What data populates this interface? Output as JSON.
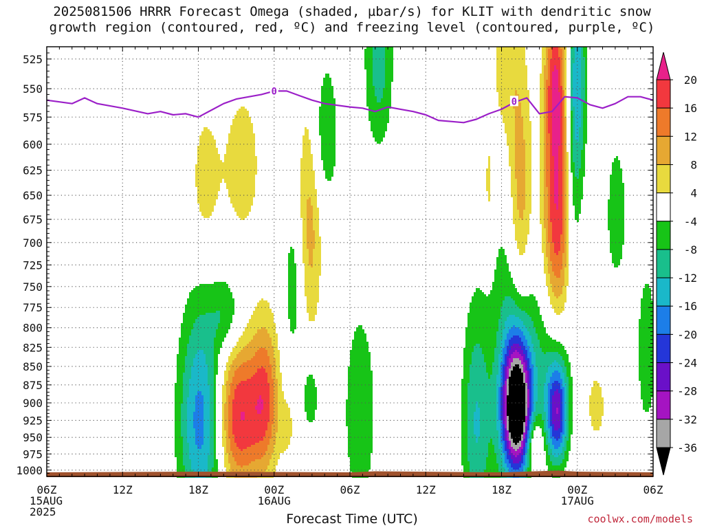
{
  "title": {
    "line1": "2025081506 HRRR Forecast Omega (shaded, µbar/s) for KLIT with dendritic snow",
    "line2": "growth region (contoured, red, ºC) and freezing level (contoured, purple, ºC)"
  },
  "xlabel": "Forecast Time (UTC)",
  "credit": "coolwx.com/models",
  "colors": {
    "freezing_line": "#9b1fc8",
    "ground": "#a0522d",
    "grid": "#555555"
  },
  "chart_data": {
    "type": "heatmap",
    "x_unit": "hours since 2025-08-15 06Z",
    "xlim": [
      0,
      48
    ],
    "ylim": [
      1010,
      515
    ],
    "y_ticks": [
      525,
      550,
      575,
      600,
      625,
      650,
      675,
      700,
      725,
      750,
      775,
      800,
      825,
      850,
      875,
      900,
      925,
      950,
      975,
      1000
    ],
    "x_ticks": [
      {
        "h": 0,
        "lines": [
          "06Z",
          "15AUG",
          "2025"
        ]
      },
      {
        "h": 6,
        "lines": [
          "12Z"
        ]
      },
      {
        "h": 12,
        "lines": [
          "18Z"
        ]
      },
      {
        "h": 18,
        "lines": [
          "00Z",
          "16AUG"
        ]
      },
      {
        "h": 24,
        "lines": [
          "06Z"
        ]
      },
      {
        "h": 30,
        "lines": [
          "12Z"
        ]
      },
      {
        "h": 36,
        "lines": [
          "18Z"
        ]
      },
      {
        "h": 42,
        "lines": [
          "00Z",
          "17AUG"
        ]
      },
      {
        "h": 48,
        "lines": [
          "06Z"
        ]
      }
    ],
    "colorbar": {
      "labels": [
        "20",
        "16",
        "12",
        "8",
        "4",
        "-4",
        "-8",
        "-12",
        "-16",
        "-20",
        "-24",
        "-28",
        "-32",
        "-36"
      ],
      "bins": [
        {
          "color": "#e8218a"
        },
        {
          "color": "#f2383e"
        },
        {
          "color": "#ee7a2a"
        },
        {
          "color": "#e6a832"
        },
        {
          "color": "#e8da3e"
        },
        {
          "color": "#ffffff"
        },
        {
          "color": "#17c417"
        },
        {
          "color": "#19bf8c"
        },
        {
          "color": "#1ab8c9"
        },
        {
          "color": "#1c7ee8"
        },
        {
          "color": "#2436d8"
        },
        {
          "color": "#6a10c8"
        },
        {
          "color": "#a514c2"
        },
        {
          "color": "#a6a6a6"
        },
        {
          "color": "#000000"
        }
      ]
    },
    "freezing_level": {
      "label": "0",
      "points": [
        [
          0,
          560
        ],
        [
          2,
          563
        ],
        [
          3,
          558
        ],
        [
          4,
          563
        ],
        [
          6,
          567
        ],
        [
          8,
          572
        ],
        [
          9,
          570
        ],
        [
          10,
          573
        ],
        [
          11,
          572
        ],
        [
          12,
          575
        ],
        [
          13,
          569
        ],
        [
          14,
          563
        ],
        [
          15,
          559
        ],
        [
          17,
          555
        ],
        [
          18,
          552
        ],
        [
          19,
          552
        ],
        [
          20,
          556
        ],
        [
          21,
          560
        ],
        [
          22,
          563
        ],
        [
          24,
          566
        ],
        [
          25,
          567
        ],
        [
          26,
          570
        ],
        [
          27,
          566
        ],
        [
          28,
          568
        ],
        [
          29,
          570
        ],
        [
          30,
          573
        ],
        [
          31,
          578
        ],
        [
          32,
          579
        ],
        [
          33,
          580
        ],
        [
          34,
          577
        ],
        [
          35,
          572
        ],
        [
          36,
          568
        ],
        [
          37,
          562
        ],
        [
          38,
          558
        ],
        [
          39,
          572
        ],
        [
          40,
          570
        ],
        [
          41,
          557
        ],
        [
          42,
          558
        ],
        [
          43,
          564
        ],
        [
          44,
          567
        ],
        [
          45,
          563
        ],
        [
          46,
          557
        ],
        [
          47,
          557
        ],
        [
          48,
          560
        ]
      ]
    },
    "features": [
      {
        "x": 26.3,
        "y": 525,
        "w": 0.8,
        "h": 55,
        "sign": -1,
        "peak": 10
      },
      {
        "x": 12.2,
        "y": 925,
        "w": 1.2,
        "h": 110,
        "sign": -1,
        "peak": 18
      },
      {
        "x": 15.2,
        "y": 920,
        "w": 1.2,
        "h": 75,
        "sign": 1,
        "peak": 20
      },
      {
        "x": 17.3,
        "y": 895,
        "w": 0.8,
        "h": 75,
        "sign": 1,
        "peak": 15
      },
      {
        "x": 12.5,
        "y": 640,
        "w": 0.9,
        "h": 60,
        "sign": 1,
        "peak": 6
      },
      {
        "x": 15.5,
        "y": 620,
        "w": 1.2,
        "h": 60,
        "sign": 1,
        "peak": 6
      },
      {
        "x": 14.3,
        "y": 785,
        "w": 0.9,
        "h": 35,
        "sign": -1,
        "peak": 8
      },
      {
        "x": 20.8,
        "y": 680,
        "w": 0.7,
        "h": 95,
        "sign": 1,
        "peak": 10
      },
      {
        "x": 22.0,
        "y": 590,
        "w": 0.8,
        "h": 50,
        "sign": -1,
        "peak": 8
      },
      {
        "x": 19.6,
        "y": 750,
        "w": 0.6,
        "h": 70,
        "sign": -1,
        "peak": 7
      },
      {
        "x": 19.0,
        "y": 935,
        "w": 0.4,
        "h": 28,
        "sign": 1,
        "peak": 6
      },
      {
        "x": 20.9,
        "y": 890,
        "w": 0.5,
        "h": 40,
        "sign": -1,
        "peak": 7
      },
      {
        "x": 24.8,
        "y": 915,
        "w": 0.9,
        "h": 100,
        "sign": -1,
        "peak": 8
      },
      {
        "x": 34.0,
        "y": 930,
        "w": 0.8,
        "h": 115,
        "sign": -1,
        "peak": 12
      },
      {
        "x": 37.2,
        "y": 905,
        "w": 0.8,
        "h": 60,
        "sign": -1,
        "peak": 38
      },
      {
        "x": 37.2,
        "y": 860,
        "w": 1.2,
        "h": 160,
        "sign": -1,
        "peak": 14
      },
      {
        "x": 37.5,
        "y": 665,
        "w": 0.7,
        "h": 95,
        "sign": 1,
        "peak": 15
      },
      {
        "x": 36.3,
        "y": 530,
        "w": 0.8,
        "h": 55,
        "sign": 1,
        "peak": 7
      },
      {
        "x": 40.4,
        "y": 655,
        "w": 0.8,
        "h": 110,
        "sign": 1,
        "peak": 21
      },
      {
        "x": 40.2,
        "y": 545,
        "w": 0.5,
        "h": 40,
        "sign": 1,
        "peak": 10
      },
      {
        "x": 40.4,
        "y": 915,
        "w": 0.6,
        "h": 50,
        "sign": -1,
        "peak": 24
      },
      {
        "x": 40.1,
        "y": 845,
        "w": 1.0,
        "h": 75,
        "sign": -1,
        "peak": 8
      },
      {
        "x": 38.6,
        "y": 965,
        "w": 0.5,
        "h": 35,
        "sign": 1,
        "peak": 13
      },
      {
        "x": 42.0,
        "y": 540,
        "w": 0.5,
        "h": 70,
        "sign": -1,
        "peak": 14
      },
      {
        "x": 41.6,
        "y": 640,
        "w": 0.5,
        "h": 90,
        "sign": -1,
        "peak": 7
      },
      {
        "x": 45.1,
        "y": 670,
        "w": 0.6,
        "h": 55,
        "sign": -1,
        "peak": 7
      },
      {
        "x": 43.5,
        "y": 905,
        "w": 0.6,
        "h": 40,
        "sign": 1,
        "peak": 6
      },
      {
        "x": 47.5,
        "y": 830,
        "w": 0.6,
        "h": 80,
        "sign": -1,
        "peak": 7
      },
      {
        "x": 35.0,
        "y": 640,
        "w": 0.25,
        "h": 35,
        "sign": 1,
        "peak": 6
      }
    ]
  }
}
